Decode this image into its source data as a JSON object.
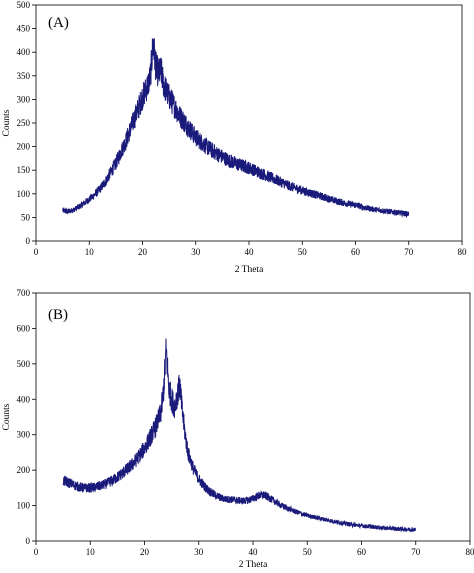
{
  "chart_data": [
    {
      "type": "line",
      "panel_label": "(A)",
      "xlabel": "2 Theta",
      "ylabel": "Counts",
      "xlim": [
        0,
        80
      ],
      "ylim": [
        0,
        500
      ],
      "xticks": [
        0,
        10,
        20,
        30,
        40,
        50,
        60,
        70,
        80
      ],
      "yticks": [
        0,
        50,
        100,
        150,
        200,
        250,
        300,
        350,
        400,
        450,
        500
      ],
      "grid": false,
      "legend": "none",
      "color": "#1a1a7a",
      "series": [
        {
          "x": [
            5,
            6,
            7,
            8,
            9,
            10,
            11,
            12,
            13,
            14,
            15,
            16,
            17,
            18,
            19,
            20,
            21,
            21.5,
            22,
            22.5,
            23,
            23.5,
            24,
            25,
            26,
            27,
            28,
            29,
            30,
            32,
            34,
            36,
            38,
            40,
            42,
            44,
            46,
            48,
            50,
            52,
            54,
            56,
            58,
            60,
            62,
            64,
            66,
            68,
            70
          ],
          "y": [
            65,
            62,
            66,
            72,
            80,
            88,
            98,
            110,
            125,
            145,
            165,
            190,
            215,
            245,
            275,
            305,
            330,
            350,
            420,
            370,
            355,
            360,
            330,
            305,
            285,
            265,
            250,
            235,
            220,
            200,
            185,
            172,
            162,
            155,
            145,
            135,
            125,
            115,
            107,
            100,
            93,
            86,
            80,
            76,
            70,
            66,
            63,
            60,
            57
          ]
        }
      ]
    },
    {
      "type": "line",
      "panel_label": "(B)",
      "xlabel": "2 Theta",
      "ylabel": "Counts",
      "xlim": [
        0,
        80
      ],
      "ylim": [
        0,
        700
      ],
      "xticks": [
        0,
        10,
        20,
        30,
        40,
        50,
        60,
        70,
        80
      ],
      "yticks": [
        0,
        100,
        200,
        300,
        400,
        500,
        600,
        700
      ],
      "grid": false,
      "legend": "none",
      "color": "#1a1a7a",
      "series": [
        {
          "x": [
            5,
            6,
            7,
            8,
            9,
            10,
            11,
            12,
            13,
            14,
            15,
            16,
            17,
            18,
            19,
            20,
            21,
            22,
            23,
            23.5,
            24,
            24.5,
            25,
            25.5,
            26,
            26.5,
            27,
            27.5,
            28,
            29,
            30,
            31,
            32,
            33,
            34,
            35,
            36,
            37,
            38,
            39,
            40,
            41,
            42,
            43,
            44,
            45,
            46,
            48,
            50,
            52,
            54,
            56,
            58,
            60,
            62,
            64,
            66,
            68,
            70
          ],
          "y": [
            170,
            165,
            158,
            152,
            150,
            150,
            152,
            156,
            162,
            170,
            180,
            192,
            205,
            220,
            240,
            262,
            290,
            320,
            360,
            420,
            540,
            430,
            400,
            380,
            410,
            440,
            360,
            300,
            250,
            205,
            175,
            155,
            140,
            130,
            122,
            118,
            117,
            115,
            113,
            115,
            120,
            128,
            130,
            122,
            112,
            102,
            95,
            82,
            72,
            65,
            58,
            52,
            47,
            43,
            40,
            37,
            35,
            33,
            32
          ]
        }
      ]
    }
  ]
}
